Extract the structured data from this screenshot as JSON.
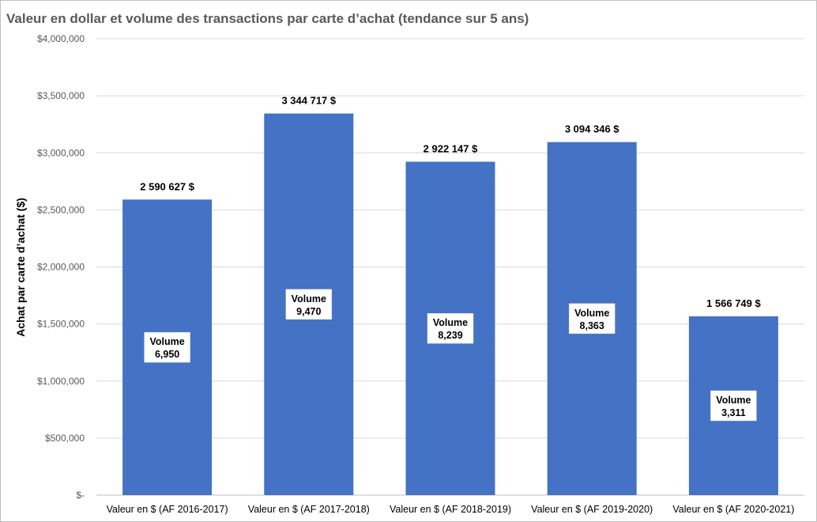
{
  "chart_data": {
    "type": "bar",
    "title": "Valeur en dollar et volume des transactions par carte d’achat (tendance sur 5 ans)",
    "xlabel": "",
    "ylabel": "Achat par carte d’achat ($)",
    "ylim": [
      0,
      4000000
    ],
    "yticks": [
      {
        "value": 0,
        "label": "$-"
      },
      {
        "value": 500000,
        "label": "$500,000"
      },
      {
        "value": 1000000,
        "label": "$1,000,000"
      },
      {
        "value": 1500000,
        "label": "$1,500,000"
      },
      {
        "value": 2000000,
        "label": "$2,000,000"
      },
      {
        "value": 2500000,
        "label": "$2,500,000"
      },
      {
        "value": 3000000,
        "label": "$3,000,000"
      },
      {
        "value": 3500000,
        "label": "$3,500,000"
      },
      {
        "value": 4000000,
        "label": "$4,000,000"
      }
    ],
    "grid": true,
    "bar_color": "#4472c4",
    "categories": [
      "Valeur en $ (AF 2016-2017)",
      "Valeur en $ (AF 2017-2018)",
      "Valeur en $ (AF 2018-2019)",
      "Valeur en $ (AF 2019-2020)",
      "Valeur en $ (AF 2020-2021)"
    ],
    "values": [
      2590627,
      3344717,
      2922147,
      3094346,
      1566749
    ],
    "value_labels": [
      "2 590 627 $",
      "3 344 717 $",
      "2 922 147 $",
      "3 094 346 $",
      "1 566 749 $"
    ],
    "volume_word": "Volume",
    "volumes": [
      "6,950",
      "9,470",
      "8,239",
      "8,363",
      "3,311"
    ]
  }
}
